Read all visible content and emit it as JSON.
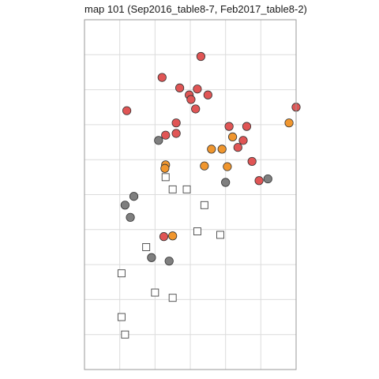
{
  "chart_data": {
    "type": "scatter",
    "title": "map 101 (Sep2016_table8-7, Feb2017_table8-2)",
    "xlabel": "",
    "ylabel": "",
    "xlim": [
      0,
      6
    ],
    "ylim": [
      0,
      10
    ],
    "x_gridlines": [
      1,
      2,
      3,
      4,
      5
    ],
    "y_gridlines": [
      1,
      2,
      3,
      4,
      5,
      6,
      7,
      8,
      9
    ],
    "grid": true,
    "legend": "none",
    "axis_ticks_shown": false,
    "colors": {
      "red": "#e05555",
      "orange": "#f0962e",
      "gray": "#7f7f7f",
      "open_square_fill": "#ffffff",
      "stroke": "#333333",
      "grid": "#dcdcdc",
      "panel_border": "#9a9a9a"
    },
    "series": [
      {
        "marker": "circle",
        "color": "red",
        "points": [
          [
            3.3,
            8.95
          ],
          [
            2.2,
            8.35
          ],
          [
            2.7,
            8.05
          ],
          [
            3.2,
            8.02
          ],
          [
            2.97,
            7.85
          ],
          [
            3.5,
            7.85
          ],
          [
            3.02,
            7.72
          ],
          [
            1.2,
            7.4
          ],
          [
            3.15,
            7.45
          ],
          [
            6.0,
            7.5
          ],
          [
            2.6,
            7.05
          ],
          [
            4.1,
            6.95
          ],
          [
            4.6,
            6.95
          ],
          [
            2.6,
            6.75
          ],
          [
            2.3,
            6.7
          ],
          [
            4.5,
            6.55
          ],
          [
            4.35,
            6.35
          ],
          [
            4.75,
            5.95
          ],
          [
            4.95,
            5.4
          ],
          [
            2.25,
            3.8
          ]
        ]
      },
      {
        "marker": "circle",
        "color": "orange",
        "points": [
          [
            5.8,
            7.05
          ],
          [
            4.2,
            6.65
          ],
          [
            3.9,
            6.3
          ],
          [
            3.6,
            6.3
          ],
          [
            2.3,
            5.85
          ],
          [
            2.28,
            5.75
          ],
          [
            3.4,
            5.82
          ],
          [
            4.05,
            5.8
          ],
          [
            2.5,
            3.82
          ]
        ]
      },
      {
        "marker": "circle",
        "color": "gray",
        "points": [
          [
            2.1,
            6.55
          ],
          [
            5.2,
            5.45
          ],
          [
            4.0,
            5.35
          ],
          [
            1.4,
            4.95
          ],
          [
            1.15,
            4.7
          ],
          [
            1.3,
            4.35
          ],
          [
            1.9,
            3.2
          ],
          [
            2.4,
            3.1
          ]
        ]
      },
      {
        "marker": "open-square",
        "color": "open_square_fill",
        "points": [
          [
            2.3,
            5.5
          ],
          [
            2.5,
            5.15
          ],
          [
            2.9,
            5.15
          ],
          [
            3.4,
            4.7
          ],
          [
            3.2,
            3.95
          ],
          [
            3.85,
            3.85
          ],
          [
            1.75,
            3.5
          ],
          [
            1.05,
            2.75
          ],
          [
            2.0,
            2.2
          ],
          [
            2.5,
            2.05
          ],
          [
            1.05,
            1.5
          ],
          [
            1.15,
            1.0
          ]
        ]
      }
    ]
  }
}
